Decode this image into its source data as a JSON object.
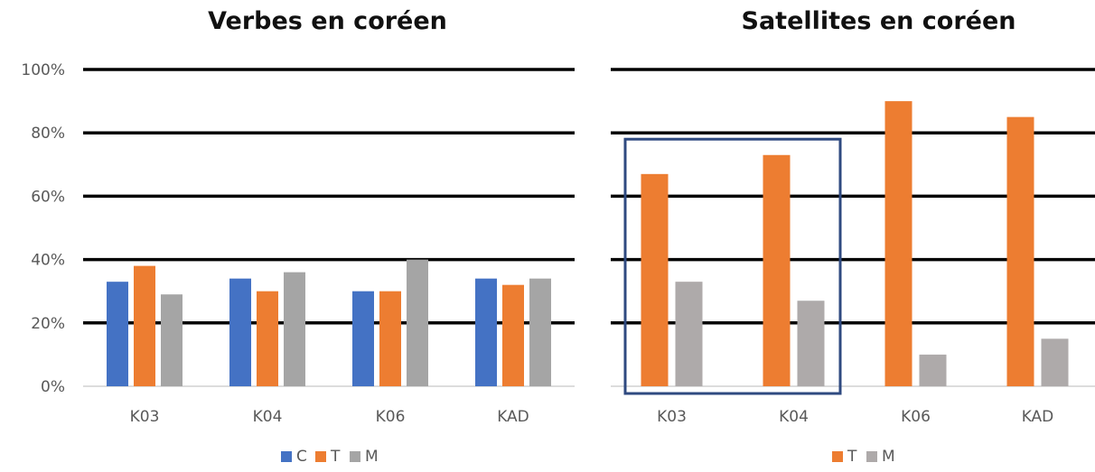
{
  "chart_data": [
    {
      "type": "bar",
      "title": "Verbes en coréen",
      "categories": [
        "K03",
        "K04",
        "K06",
        "KAD"
      ],
      "series": [
        {
          "name": "C",
          "color": "#4472C4",
          "values": [
            33,
            34,
            30,
            34
          ]
        },
        {
          "name": "T",
          "color": "#ED7D31",
          "values": [
            38,
            30,
            30,
            32
          ]
        },
        {
          "name": "M",
          "color": "#A5A5A5",
          "values": [
            29,
            36,
            40,
            34
          ]
        }
      ],
      "ylim": [
        0,
        100
      ],
      "yticks": [
        "0%",
        "20%",
        "40%",
        "60%",
        "80%",
        "100%"
      ],
      "grid": true,
      "legend": "bottom"
    },
    {
      "type": "bar",
      "title": "Satellites en coréen",
      "categories": [
        "K03",
        "K04",
        "K06",
        "KAD"
      ],
      "series": [
        {
          "name": "T",
          "color": "#ED7D31",
          "values": [
            67,
            73,
            90,
            85
          ]
        },
        {
          "name": "M",
          "color": "#AEAAAA",
          "values": [
            33,
            27,
            10,
            15
          ]
        }
      ],
      "ylim": [
        0,
        100
      ],
      "grid": true,
      "legend": "bottom",
      "highlight": {
        "categories": [
          "K03",
          "K04"
        ],
        "color": "#2F4A80"
      }
    }
  ]
}
